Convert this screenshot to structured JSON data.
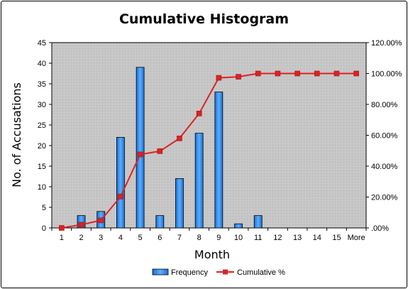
{
  "chart_data": {
    "type": "bar",
    "title": "Cumulative Histogram",
    "xlabel": "Month",
    "ylabel": "No. of Accusations",
    "categories": [
      "1",
      "2",
      "3",
      "4",
      "5",
      "6",
      "7",
      "8",
      "9",
      "10",
      "11",
      "12",
      "13",
      "14",
      "15",
      "More"
    ],
    "ylim": [
      0,
      45
    ],
    "yticks": [
      "0",
      "5",
      "10",
      "15",
      "20",
      "25",
      "30",
      "35",
      "40",
      "45"
    ],
    "y2lim": [
      0,
      120
    ],
    "y2ticks": [
      ".00%",
      "20.00%",
      "40.00%",
      "60.00%",
      "80.00%",
      "100.00%",
      "120.00%"
    ],
    "grid": false,
    "legend_position": "bottom",
    "series": [
      {
        "name": "Frequency",
        "type": "bar",
        "axis": "left",
        "color": "#3399ff",
        "values": [
          0,
          3,
          4,
          22,
          39,
          3,
          12,
          23,
          33,
          1,
          3,
          0,
          0,
          0,
          0,
          0
        ]
      },
      {
        "name": "Cumulative %",
        "type": "line",
        "axis": "right",
        "color": "#dd2222",
        "values": [
          0,
          2.1,
          4.9,
          20.3,
          47.6,
          49.7,
          58.0,
          74.1,
          97.2,
          97.9,
          100,
          100,
          100,
          100,
          100,
          100
        ]
      }
    ]
  }
}
